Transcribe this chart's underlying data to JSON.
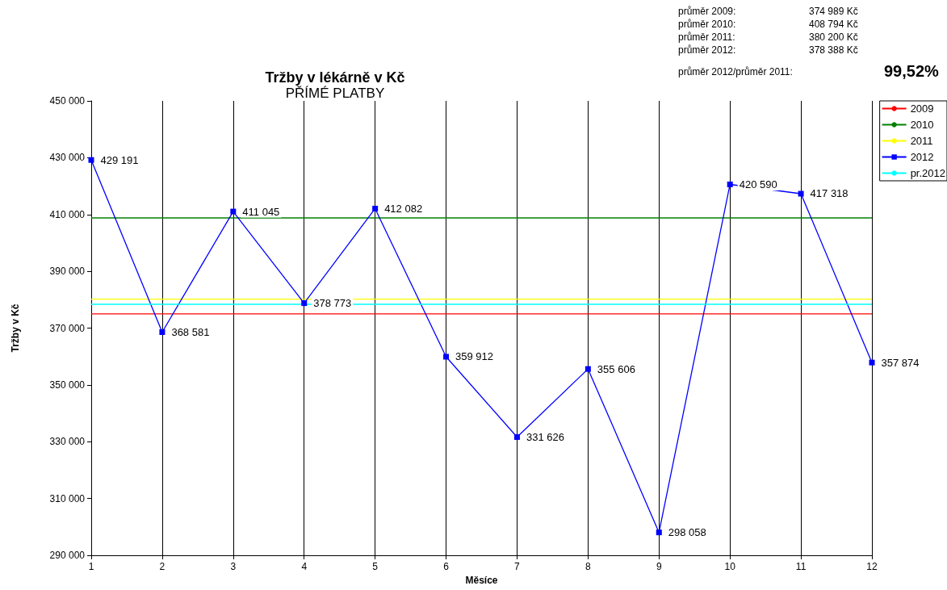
{
  "chart_data": {
    "type": "line",
    "title": "Tržby v lékárně v Kč",
    "subtitle": "PŘÍMÉ PLATBY",
    "xlabel": "Měsíce",
    "ylabel": "Tržby v Kč",
    "x": [
      1,
      2,
      3,
      4,
      5,
      6,
      7,
      8,
      9,
      10,
      11,
      12
    ],
    "xlim": [
      1,
      12
    ],
    "xticks": [
      1,
      2,
      3,
      4,
      5,
      6,
      7,
      8,
      9,
      10,
      11,
      12
    ],
    "ylim": [
      290000,
      450000
    ],
    "yticks": [
      {
        "value": 290000,
        "label": "290 000"
      },
      {
        "value": 310000,
        "label": "310 000"
      },
      {
        "value": 330000,
        "label": "330 000"
      },
      {
        "value": 350000,
        "label": "350 000"
      },
      {
        "value": 370000,
        "label": "370 000"
      },
      {
        "value": 390000,
        "label": "390 000"
      },
      {
        "value": 410000,
        "label": "410 000"
      },
      {
        "value": 430000,
        "label": "430 000"
      },
      {
        "value": 450000,
        "label": "450 000"
      }
    ],
    "grid": "x",
    "legend": "top right",
    "line_style": "solid",
    "series": [
      {
        "name": "2009",
        "color": "#ff0000",
        "marker": "none",
        "values": [
          374989,
          374989,
          374989,
          374989,
          374989,
          374989,
          374989,
          374989,
          374989,
          374989,
          374989,
          374989
        ]
      },
      {
        "name": "2010",
        "color": "#008000",
        "marker": "none",
        "values": [
          408794,
          408794,
          408794,
          408794,
          408794,
          408794,
          408794,
          408794,
          408794,
          408794,
          408794,
          408794
        ]
      },
      {
        "name": "2011",
        "color": "#ffff00",
        "marker": "none",
        "values": [
          380200,
          380200,
          380200,
          380200,
          380200,
          380200,
          380200,
          380200,
          380200,
          380200,
          380200,
          380200
        ]
      },
      {
        "name": "2012",
        "color": "#0000ff",
        "marker": "square",
        "values": [
          429191,
          368581,
          411045,
          378773,
          412082,
          359912,
          331626,
          355606,
          298058,
          420590,
          417318,
          357874
        ],
        "value_labels": [
          "429 191",
          "368 581",
          "411 045",
          "378 773",
          "412 082",
          "359 912",
          "331 626",
          "355 606",
          "298 058",
          "420 590",
          "417 318",
          "357 874"
        ]
      },
      {
        "name": "pr.2012",
        "color": "#00ffff",
        "marker": "none",
        "values": [
          378388,
          378388,
          378388,
          378388,
          378388,
          378388,
          378388,
          378388,
          378388,
          378388,
          378388,
          378388
        ]
      }
    ],
    "annotations": [
      "průměr 2009:\t374 989 Kč",
      "průměr 2010:\t408 794 Kč",
      "průměr 2011:\t380 200 Kč",
      "průměr 2012:\t378 388 Kč",
      "průměr 2012/průměr 2011:\t99,52%"
    ]
  }
}
